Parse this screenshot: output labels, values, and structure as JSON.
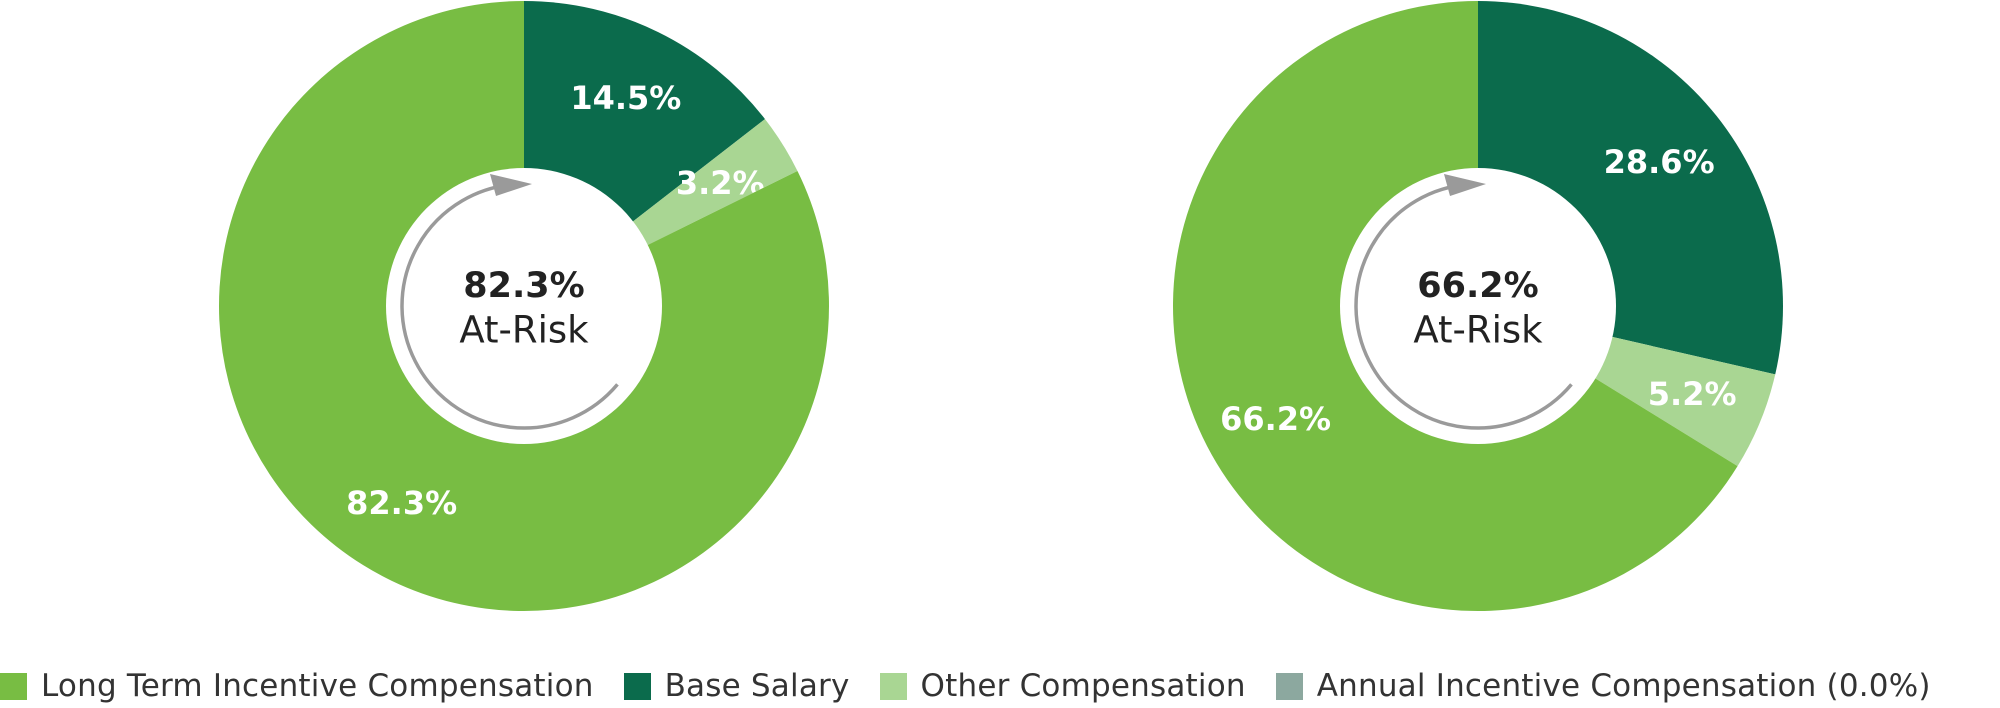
{
  "colors": {
    "long_term": "#78bd43",
    "base_salary": "#0b6b4c",
    "other": "#a9d693",
    "annual": "#8ca89f",
    "arrow": "#9a9a9a",
    "hole": "#ffffff"
  },
  "chart_data": [
    {
      "type": "pie",
      "variant": "donut",
      "center": {
        "value": "82.3%",
        "caption": "At-Risk"
      },
      "slices": [
        {
          "name": "Base Salary",
          "value": 14.5,
          "label": "14.5%",
          "color_key": "base_salary"
        },
        {
          "name": "Other Compensation",
          "value": 3.2,
          "label": "3.2%",
          "color_key": "other"
        },
        {
          "name": "Long Term Incentive Compensation",
          "value": 82.3,
          "label": "82.3%",
          "color_key": "long_term"
        }
      ]
    },
    {
      "type": "pie",
      "variant": "donut",
      "center": {
        "value": "66.2%",
        "caption": "At-Risk"
      },
      "slices": [
        {
          "name": "Base Salary",
          "value": 28.6,
          "label": "28.6%",
          "color_key": "base_salary"
        },
        {
          "name": "Other Compensation",
          "value": 5.2,
          "label": "5.2%",
          "color_key": "other"
        },
        {
          "name": "Long Term Incentive Compensation",
          "value": 66.2,
          "label": "66.2%",
          "color_key": "long_term"
        }
      ]
    }
  ],
  "legend": [
    {
      "label": "Long Term Incentive Compensation",
      "color_key": "long_term"
    },
    {
      "label": "Base Salary",
      "color_key": "base_salary"
    },
    {
      "label": "Other Compensation",
      "color_key": "other"
    },
    {
      "label": "Annual Incentive Compensation (0.0%)",
      "color_key": "annual"
    }
  ]
}
